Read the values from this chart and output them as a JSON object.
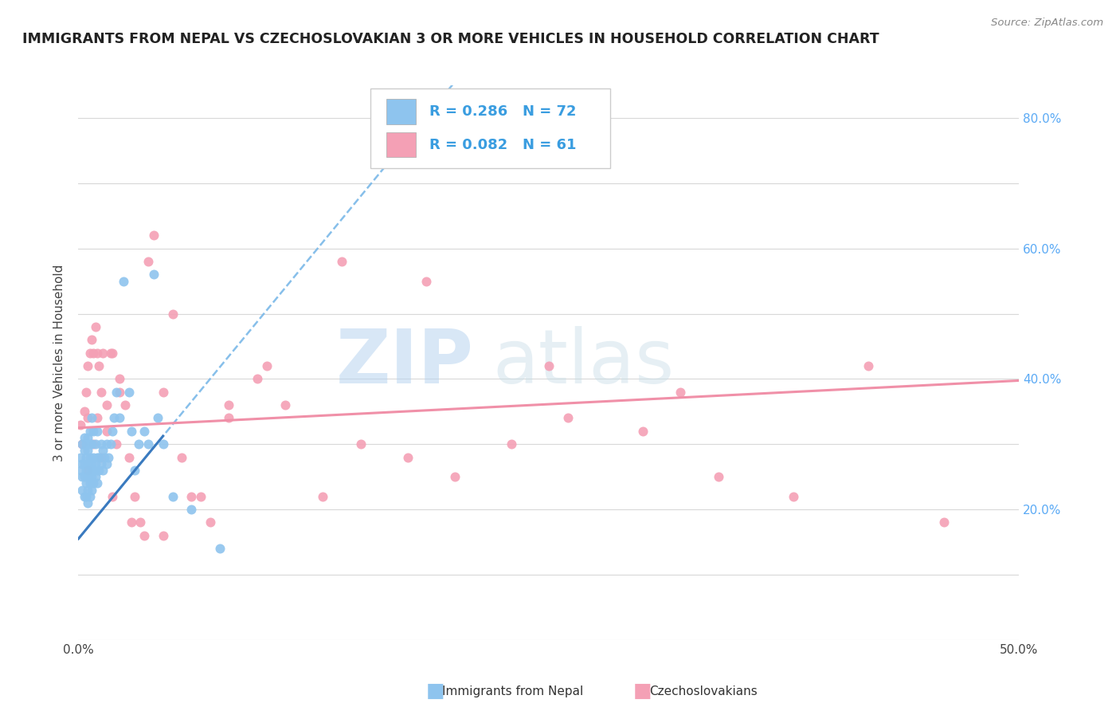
{
  "title": "IMMIGRANTS FROM NEPAL VS CZECHOSLOVAKIAN 3 OR MORE VEHICLES IN HOUSEHOLD CORRELATION CHART",
  "source": "Source: ZipAtlas.com",
  "ylabel": "3 or more Vehicles in Household",
  "xlim": [
    0.0,
    0.5
  ],
  "ylim": [
    0.0,
    0.85
  ],
  "nepal_color": "#8ec4ee",
  "czech_color": "#f4a0b5",
  "nepal_R": "0.286",
  "nepal_N": "72",
  "czech_R": "0.082",
  "czech_N": "61",
  "legend_label1": "Immigrants from Nepal",
  "legend_label2": "Czechoslovakians",
  "watermark_zip": "ZIP",
  "watermark_atlas": "atlas",
  "right_axis_color": "#5baaf5",
  "grid_color": "#d8d8d8",
  "nepal_trendline_color": "#7ab8e8",
  "nepal_trendline_style": "--",
  "czech_trendline_color": "#f090a8",
  "czech_trendline_style": "-",
  "nepal_solid_color": "#3a7abf",
  "nepal_solid_style": "-",
  "nepal_x": [
    0.001,
    0.001,
    0.002,
    0.002,
    0.002,
    0.002,
    0.003,
    0.003,
    0.003,
    0.003,
    0.003,
    0.004,
    0.004,
    0.004,
    0.004,
    0.004,
    0.005,
    0.005,
    0.005,
    0.005,
    0.005,
    0.005,
    0.006,
    0.006,
    0.006,
    0.006,
    0.006,
    0.006,
    0.007,
    0.007,
    0.007,
    0.007,
    0.007,
    0.008,
    0.008,
    0.008,
    0.008,
    0.009,
    0.009,
    0.009,
    0.01,
    0.01,
    0.01,
    0.01,
    0.011,
    0.011,
    0.012,
    0.012,
    0.013,
    0.013,
    0.014,
    0.015,
    0.015,
    0.016,
    0.017,
    0.018,
    0.019,
    0.02,
    0.022,
    0.024,
    0.027,
    0.028,
    0.03,
    0.032,
    0.035,
    0.037,
    0.04,
    0.042,
    0.045,
    0.05,
    0.06,
    0.075
  ],
  "nepal_y": [
    0.26,
    0.28,
    0.23,
    0.25,
    0.27,
    0.3,
    0.22,
    0.25,
    0.27,
    0.29,
    0.31,
    0.22,
    0.24,
    0.26,
    0.28,
    0.3,
    0.21,
    0.23,
    0.25,
    0.27,
    0.29,
    0.31,
    0.22,
    0.24,
    0.26,
    0.28,
    0.3,
    0.32,
    0.23,
    0.25,
    0.27,
    0.3,
    0.34,
    0.24,
    0.26,
    0.28,
    0.32,
    0.25,
    0.27,
    0.3,
    0.24,
    0.26,
    0.28,
    0.32,
    0.26,
    0.28,
    0.27,
    0.3,
    0.26,
    0.29,
    0.28,
    0.27,
    0.3,
    0.28,
    0.3,
    0.32,
    0.34,
    0.38,
    0.34,
    0.55,
    0.38,
    0.32,
    0.26,
    0.3,
    0.32,
    0.3,
    0.56,
    0.34,
    0.3,
    0.22,
    0.2,
    0.14
  ],
  "czech_x": [
    0.001,
    0.002,
    0.003,
    0.004,
    0.005,
    0.005,
    0.006,
    0.007,
    0.008,
    0.009,
    0.01,
    0.011,
    0.012,
    0.013,
    0.015,
    0.017,
    0.018,
    0.02,
    0.022,
    0.025,
    0.027,
    0.03,
    0.033,
    0.037,
    0.04,
    0.045,
    0.05,
    0.06,
    0.07,
    0.08,
    0.095,
    0.11,
    0.13,
    0.15,
    0.175,
    0.2,
    0.23,
    0.26,
    0.3,
    0.34,
    0.38,
    0.42,
    0.46,
    0.005,
    0.008,
    0.01,
    0.012,
    0.015,
    0.018,
    0.022,
    0.028,
    0.035,
    0.045,
    0.055,
    0.065,
    0.08,
    0.1,
    0.14,
    0.185,
    0.25,
    0.32
  ],
  "czech_y": [
    0.33,
    0.3,
    0.35,
    0.38,
    0.34,
    0.42,
    0.44,
    0.46,
    0.44,
    0.48,
    0.44,
    0.42,
    0.38,
    0.44,
    0.32,
    0.44,
    0.22,
    0.3,
    0.38,
    0.36,
    0.28,
    0.22,
    0.18,
    0.58,
    0.62,
    0.38,
    0.5,
    0.22,
    0.18,
    0.36,
    0.4,
    0.36,
    0.22,
    0.3,
    0.28,
    0.25,
    0.3,
    0.34,
    0.32,
    0.25,
    0.22,
    0.42,
    0.18,
    0.26,
    0.3,
    0.34,
    0.28,
    0.36,
    0.44,
    0.4,
    0.18,
    0.16,
    0.16,
    0.28,
    0.22,
    0.34,
    0.42,
    0.58,
    0.55,
    0.42,
    0.38
  ],
  "nepal_intercept": 0.155,
  "nepal_slope": 3.5,
  "czech_intercept": 0.325,
  "czech_slope": 0.145,
  "title_color": "#222222",
  "title_fontsize": 13
}
